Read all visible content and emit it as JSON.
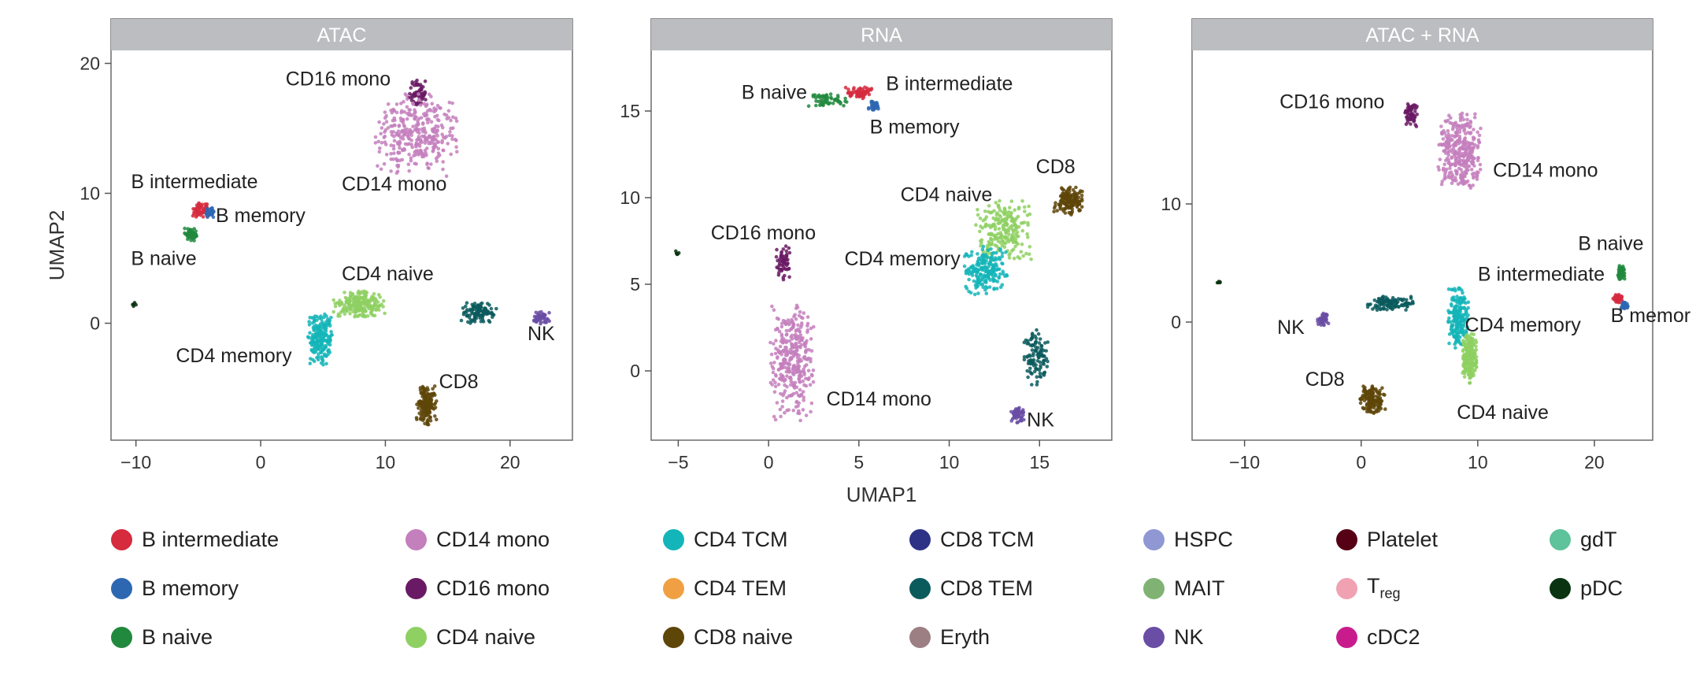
{
  "chart_data": [
    {
      "type": "scatter",
      "title": "ATAC",
      "ylabel": "UMAP2",
      "xlabel": "",
      "xlim": [
        -12,
        25
      ],
      "ylim": [
        -9,
        21
      ],
      "xticks": [
        -10,
        0,
        10,
        20
      ],
      "yticks": [
        0,
        10,
        20
      ],
      "clusters": [
        {
          "name": "CD16 mono",
          "cell_type": "CD16 mono",
          "x": 12.6,
          "y": 17.8
        },
        {
          "name": "CD14 mono",
          "cell_type": "CD14 mono",
          "x": 12.5,
          "y": 14.5
        },
        {
          "name": "B intermediate",
          "cell_type": "B intermediate",
          "x": -4.8,
          "y": 8.7
        },
        {
          "name": "B memory",
          "cell_type": "B memory",
          "x": -4.0,
          "y": 8.5
        },
        {
          "name": "B naive",
          "cell_type": "B naive",
          "x": -5.6,
          "y": 6.8
        },
        {
          "name": "CD4 naive",
          "cell_type": "CD4 naive",
          "x": 7.8,
          "y": 1.5
        },
        {
          "name": "CD4 memory",
          "cell_type": "CD4 TCM",
          "x": 4.8,
          "y": -1.2
        },
        {
          "name": "CD8 TEM",
          "cell_type": "CD8 TEM",
          "x": 17.5,
          "y": 0.8
        },
        {
          "name": "NK",
          "cell_type": "NK",
          "x": 22.5,
          "y": 0.4
        },
        {
          "name": "CD8",
          "cell_type": "CD8 naive",
          "x": 13.3,
          "y": -6.3
        },
        {
          "name": "pDC",
          "cell_type": "pDC",
          "x": -10.2,
          "y": 1.4
        }
      ],
      "labels": [
        {
          "text": "CD16 mono",
          "x": 2.0,
          "y": 18.3
        },
        {
          "text": "CD14 mono",
          "x": 6.5,
          "y": 10.2
        },
        {
          "text": "B intermediate",
          "x": -10.4,
          "y": 10.4
        },
        {
          "text": "B memory",
          "x": -3.6,
          "y": 7.8
        },
        {
          "text": "B naive",
          "x": -10.4,
          "y": 4.5
        },
        {
          "text": "CD4 naive",
          "x": 6.5,
          "y": 3.3
        },
        {
          "text": "CD4  memory",
          "x": -6.8,
          "y": -3.0
        },
        {
          "text": "CD8",
          "x": 14.3,
          "y": -5.0
        },
        {
          "text": "NK",
          "x": 21.4,
          "y": -1.3
        }
      ]
    },
    {
      "type": "scatter",
      "title": "RNA",
      "xlabel": "UMAP1",
      "ylabel": "",
      "xlim": [
        -6.5,
        19
      ],
      "ylim": [
        -4,
        18.5
      ],
      "xticks": [
        -5,
        0,
        5,
        10,
        15
      ],
      "yticks": [
        0,
        5,
        10,
        15
      ],
      "clusters": [
        {
          "name": "B naive",
          "cell_type": "B naive",
          "x": 3.3,
          "y": 15.6
        },
        {
          "name": "B intermediate",
          "cell_type": "B intermediate",
          "x": 5.0,
          "y": 16.1
        },
        {
          "name": "B memory",
          "cell_type": "B memory",
          "x": 5.8,
          "y": 15.3
        },
        {
          "name": "CD8",
          "cell_type": "CD8 naive",
          "x": 16.6,
          "y": 9.8
        },
        {
          "name": "CD4 naive",
          "cell_type": "CD4 naive",
          "x": 13.0,
          "y": 8.2
        },
        {
          "name": "CD4 memory",
          "cell_type": "CD4 TCM",
          "x": 12.0,
          "y": 5.8
        },
        {
          "name": "CD16 mono",
          "cell_type": "CD16 mono",
          "x": 0.8,
          "y": 6.2
        },
        {
          "name": "CD14 mono",
          "cell_type": "CD14 mono",
          "x": 1.3,
          "y": 0.5
        },
        {
          "name": "CD8 TEM",
          "cell_type": "CD8 TEM",
          "x": 14.8,
          "y": 0.8
        },
        {
          "name": "NK",
          "cell_type": "NK",
          "x": 13.8,
          "y": -2.5
        },
        {
          "name": "pDC",
          "cell_type": "pDC",
          "x": -5.1,
          "y": 6.8
        }
      ],
      "labels": [
        {
          "text": "B naive",
          "x": -1.5,
          "y": 15.7
        },
        {
          "text": "B intermediate",
          "x": 6.5,
          "y": 16.2
        },
        {
          "text": "B memory",
          "x": 5.6,
          "y": 13.7
        },
        {
          "text": "CD8",
          "x": 14.8,
          "y": 11.4
        },
        {
          "text": "CD4 naive",
          "x": 7.3,
          "y": 9.8
        },
        {
          "text": "CD16 mono",
          "x": -3.2,
          "y": 7.6
        },
        {
          "text": "CD4  memory",
          "x": 4.2,
          "y": 6.1
        },
        {
          "text": "CD14 mono",
          "x": 3.2,
          "y": -2.0
        },
        {
          "text": "NK",
          "x": 14.3,
          "y": -3.2
        }
      ]
    },
    {
      "type": "scatter",
      "title": "ATAC + RNA",
      "xlabel": "",
      "ylabel": "",
      "xlim": [
        -14.5,
        25
      ],
      "ylim": [
        -10,
        23
      ],
      "xticks": [
        -10,
        0,
        10,
        20
      ],
      "yticks": [
        0,
        10
      ],
      "clusters": [
        {
          "name": "CD16 mono",
          "cell_type": "CD16 mono",
          "x": 4.3,
          "y": 17.5
        },
        {
          "name": "CD14 mono",
          "cell_type": "CD14 mono",
          "x": 8.5,
          "y": 14.5
        },
        {
          "name": "B naive",
          "cell_type": "B naive",
          "x": 22.3,
          "y": 4.2
        },
        {
          "name": "B intermediate",
          "cell_type": "B intermediate",
          "x": 22.0,
          "y": 2.0
        },
        {
          "name": "B memory",
          "cell_type": "B memory",
          "x": 22.6,
          "y": 1.4
        },
        {
          "name": "NK",
          "cell_type": "NK",
          "x": -3.3,
          "y": 0.3
        },
        {
          "name": "CD4 memory",
          "cell_type": "CD4 TCM",
          "x": 8.3,
          "y": 0.3
        },
        {
          "name": "CD4 naive",
          "cell_type": "CD4 naive",
          "x": 9.3,
          "y": -3.0
        },
        {
          "name": "CD8 TEM",
          "cell_type": "CD8 TEM",
          "x": 2.5,
          "y": 1.6
        },
        {
          "name": "CD8",
          "cell_type": "CD8 naive",
          "x": 1.0,
          "y": -6.6
        },
        {
          "name": "pDC",
          "cell_type": "pDC",
          "x": -12.2,
          "y": 3.4
        }
      ],
      "labels": [
        {
          "text": "CD16 mono",
          "x": -7.0,
          "y": 18.1
        },
        {
          "text": "CD14 mono",
          "x": 11.3,
          "y": 12.3
        },
        {
          "text": "B naive",
          "x": 18.6,
          "y": 6.1
        },
        {
          "text": "B intermediate",
          "x": 10.0,
          "y": 3.5
        },
        {
          "text": "B memor",
          "x": 21.4,
          "y": 0.0
        },
        {
          "text": "NK",
          "x": -7.2,
          "y": -1.0
        },
        {
          "text": "CD4  memory",
          "x": 8.9,
          "y": -0.8
        },
        {
          "text": "CD8",
          "x": -4.8,
          "y": -5.4
        },
        {
          "text": "CD4 naive",
          "x": 8.2,
          "y": -8.2
        }
      ]
    }
  ],
  "legend": [
    {
      "label": "B intermediate",
      "sub": "",
      "color": "#d62a3e"
    },
    {
      "label": "B memory",
      "sub": "",
      "color": "#2e67b1"
    },
    {
      "label": "B naive",
      "sub": "",
      "color": "#21893e"
    },
    {
      "label": "CD14 mono",
      "sub": "",
      "color": "#c47fbd"
    },
    {
      "label": "CD16 mono",
      "sub": "",
      "color": "#6a1a64"
    },
    {
      "label": "CD4 naive",
      "sub": "",
      "color": "#8ed062"
    },
    {
      "label": "CD4 TCM",
      "sub": "",
      "color": "#14b5b9"
    },
    {
      "label": "CD4 TEM",
      "sub": "",
      "color": "#f0a043"
    },
    {
      "label": "CD8 naive",
      "sub": "",
      "color": "#5e4508"
    },
    {
      "label": "CD8 TCM",
      "sub": "",
      "color": "#2d3286"
    },
    {
      "label": "CD8 TEM",
      "sub": "",
      "color": "#0b5b5d"
    },
    {
      "label": "Eryth",
      "sub": "",
      "color": "#9c7f83"
    },
    {
      "label": "HSPC",
      "sub": "",
      "color": "#8f98d2"
    },
    {
      "label": "MAIT",
      "sub": "",
      "color": "#80b373"
    },
    {
      "label": "NK",
      "sub": "",
      "color": "#6a4da5"
    },
    {
      "label": "Platelet",
      "sub": "",
      "color": "#550015"
    },
    {
      "label": "T",
      "sub": "reg",
      "color": "#f0a2b3"
    },
    {
      "label": "cDC2",
      "sub": "",
      "color": "#c81c8d"
    },
    {
      "label": "gdT",
      "sub": "",
      "color": "#5ec29b"
    },
    {
      "label": "pDC",
      "sub": "",
      "color": "#0a3411"
    }
  ]
}
